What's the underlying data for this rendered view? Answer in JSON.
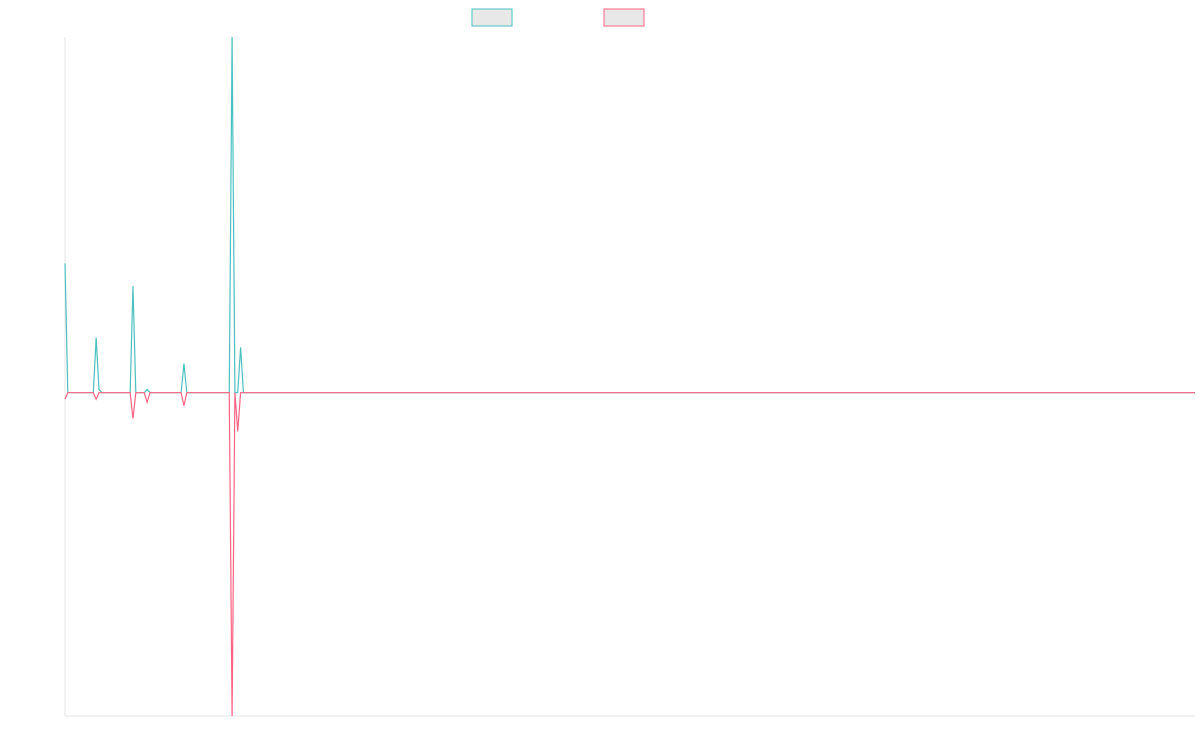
{
  "chart_data": {
    "type": "line",
    "title": "",
    "xlabel": "",
    "ylabel": "",
    "grid": false,
    "legend_position": "top-center",
    "x": [
      0,
      1,
      2,
      3,
      4,
      5,
      6,
      7,
      8,
      9,
      10,
      11,
      12,
      13,
      14,
      15,
      16,
      17,
      18,
      19,
      20,
      21,
      22,
      23,
      24,
      25,
      26,
      27,
      28,
      29,
      30,
      31,
      32,
      33,
      34,
      35,
      36,
      37,
      38,
      39,
      40,
      41,
      42,
      43,
      44,
      45,
      46,
      47,
      48,
      49,
      50,
      51,
      52,
      53,
      54,
      55,
      56,
      57,
      58,
      59,
      60,
      61,
      62,
      63,
      64,
      65,
      66,
      67,
      68,
      69,
      70,
      71,
      72,
      73,
      74,
      75,
      76,
      77,
      78,
      79,
      80,
      81,
      82,
      83,
      84,
      85,
      86,
      87,
      88,
      89,
      90,
      91,
      92,
      93,
      94,
      95,
      96,
      97,
      98,
      99,
      100,
      101,
      102,
      103,
      104,
      105,
      106,
      107,
      108,
      109,
      110,
      111,
      112,
      113,
      114,
      115,
      116,
      117,
      118,
      119,
      120,
      121,
      122,
      123,
      124,
      125,
      126,
      127,
      128,
      129,
      130,
      131,
      132,
      133,
      134,
      135,
      136,
      137,
      138,
      139,
      140,
      141,
      142,
      143,
      144,
      145,
      146,
      147,
      148,
      149,
      150,
      151,
      152,
      153,
      154,
      155,
      156,
      157,
      158,
      159,
      160,
      161,
      162,
      163,
      164,
      165,
      166,
      167,
      168,
      169,
      170,
      171,
      172,
      173,
      174,
      175,
      176,
      177,
      178,
      179,
      180,
      181,
      182,
      183,
      184,
      185,
      186,
      187,
      188,
      189,
      190,
      191,
      192,
      193,
      194,
      195,
      196,
      197,
      198,
      199,
      200,
      201,
      202,
      203,
      204,
      205,
      206,
      207,
      208,
      209,
      210,
      211,
      212,
      213,
      214,
      215,
      216,
      217,
      218,
      219,
      220,
      221,
      222,
      223,
      224,
      225,
      226,
      227,
      228,
      229,
      230,
      231,
      232,
      233,
      234,
      235,
      236,
      237,
      238,
      239,
      240,
      241,
      242,
      243,
      244,
      245,
      246,
      247,
      248,
      249,
      250,
      251,
      252,
      253,
      254,
      255,
      256,
      257,
      258,
      259,
      260,
      261,
      262,
      263,
      264,
      265,
      266,
      267,
      268,
      269,
      270,
      271,
      272,
      273,
      274,
      275,
      276,
      277,
      278,
      279,
      280,
      281,
      282,
      283,
      284,
      285,
      286,
      287,
      288,
      289,
      290,
      291,
      292,
      293,
      294,
      295,
      296,
      297,
      298,
      299,
      300,
      301,
      302,
      303,
      304,
      305,
      306,
      307,
      308,
      309,
      310,
      311,
      312,
      313,
      314,
      315,
      316,
      317,
      318,
      319,
      320,
      321,
      322,
      323,
      324,
      325,
      326,
      327,
      328,
      329,
      330,
      331,
      332,
      333,
      334,
      335,
      336,
      337,
      338,
      339,
      340,
      341,
      342,
      343,
      344,
      345,
      346,
      347,
      348,
      349,
      350,
      351,
      352,
      353,
      354,
      355,
      356,
      357,
      358,
      359,
      360,
      361,
      362,
      363,
      364,
      365,
      366,
      367,
      368,
      369,
      370,
      371,
      372,
      373,
      374,
      375,
      376,
      377,
      378,
      379,
      380,
      381,
      382,
      383,
      384,
      385,
      386,
      387,
      388,
      389,
      390,
      391,
      392,
      393,
      394,
      395,
      396,
      397,
      398,
      399
    ],
    "ylim": [
      -100,
      110
    ],
    "series": [
      {
        "color": "#4bc0c0",
        "points": [
          [
            0,
            40
          ],
          [
            1,
            0
          ],
          [
            10,
            0
          ],
          [
            11,
            17
          ],
          [
            12,
            1
          ],
          [
            13,
            0
          ],
          [
            23,
            0
          ],
          [
            24,
            33
          ],
          [
            25,
            0
          ],
          [
            28,
            0
          ],
          [
            29,
            1
          ],
          [
            30,
            0
          ],
          [
            41,
            0
          ],
          [
            42,
            9
          ],
          [
            43,
            0
          ],
          [
            58,
            0
          ],
          [
            59,
            110
          ],
          [
            60,
            0
          ],
          [
            61,
            0
          ],
          [
            62,
            14
          ],
          [
            63,
            0
          ],
          [
            399,
            0
          ]
        ]
      },
      {
        "color": "#ff6384",
        "points": [
          [
            0,
            -2
          ],
          [
            1,
            0
          ],
          [
            10,
            0
          ],
          [
            11,
            -2
          ],
          [
            12,
            0
          ],
          [
            23,
            0
          ],
          [
            24,
            -8
          ],
          [
            25,
            0
          ],
          [
            28,
            0
          ],
          [
            29,
            -3
          ],
          [
            30,
            0
          ],
          [
            41,
            0
          ],
          [
            42,
            -4
          ],
          [
            43,
            0
          ],
          [
            58,
            0
          ],
          [
            59,
            -100
          ],
          [
            60,
            0
          ],
          [
            61,
            -12
          ],
          [
            62,
            0
          ],
          [
            399,
            0
          ]
        ]
      }
    ]
  }
}
